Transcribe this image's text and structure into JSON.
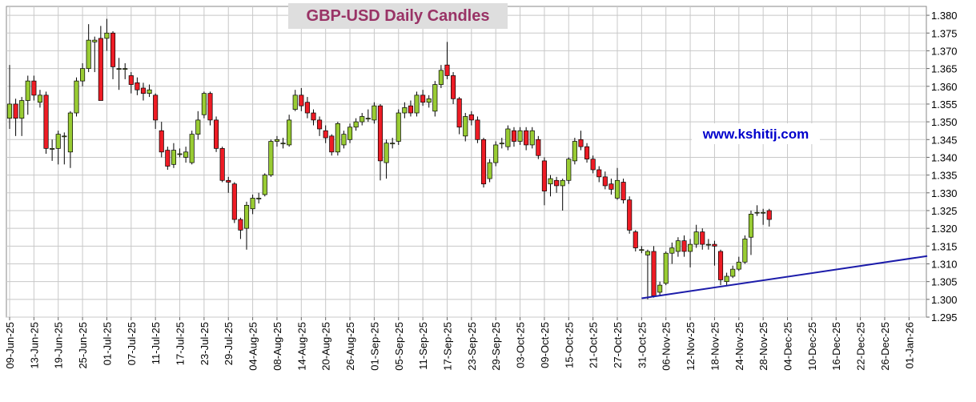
{
  "chart_data": {
    "type": "candlestick",
    "title": "GBP-USD Daily Candles",
    "annotation": "www.kshitij.com",
    "up_color": "#99cc33",
    "down_color": "#ee1c25",
    "grid": true,
    "ylim": [
      1.295,
      1.3825
    ],
    "yticks": [
      1.295,
      {
        "value": 1.3,
        "label": "1.300"
      },
      1.305,
      {
        "value": 1.31,
        "label": "1.310"
      },
      1.315,
      {
        "value": 1.32,
        "label": "1.320"
      },
      1.325,
      {
        "value": 1.33,
        "label": "1.330"
      },
      1.335,
      {
        "value": 1.34,
        "label": "1.340"
      },
      1.345,
      {
        "value": 1.35,
        "label": "1.350"
      },
      1.355,
      {
        "value": 1.36,
        "label": "1.360"
      },
      1.365,
      {
        "value": 1.37,
        "label": "1.370"
      },
      1.375,
      {
        "value": 1.38,
        "label": "1.380"
      }
    ],
    "categories": [
      "09-Jun-25",
      null,
      null,
      null,
      "13-Jun-25",
      null,
      null,
      null,
      "19-Jun-25",
      null,
      null,
      null,
      "25-Jun-25",
      null,
      null,
      null,
      "01-Jul-25",
      null,
      null,
      null,
      "07-Jul-25",
      null,
      null,
      null,
      "11-Jul-25",
      null,
      null,
      null,
      "17-Jul-25",
      null,
      null,
      null,
      "23-Jul-25",
      null,
      null,
      null,
      "29-Jul-25",
      null,
      null,
      null,
      "04-Aug-25",
      null,
      null,
      null,
      "08-Aug-25",
      null,
      null,
      null,
      "14-Aug-25",
      null,
      null,
      null,
      "20-Aug-25",
      null,
      null,
      null,
      "26-Aug-25",
      null,
      null,
      null,
      "01-Sep-25",
      null,
      null,
      null,
      "05-Sep-25",
      null,
      null,
      null,
      "11-Sep-25",
      null,
      null,
      null,
      "17-Sep-25",
      null,
      null,
      null,
      "23-Sep-25",
      null,
      null,
      null,
      "29-Sep-25",
      null,
      null,
      null,
      "03-Oct-25",
      null,
      null,
      null,
      "09-Oct-25",
      null,
      null,
      null,
      "15-Oct-25",
      null,
      null,
      null,
      "21-Oct-25",
      null,
      null,
      null,
      "27-Oct-25",
      null,
      null,
      null,
      "31-Oct-25",
      null,
      null,
      null,
      "06-Nov-25",
      null,
      null,
      null,
      "12-Nov-25",
      null,
      null,
      null,
      "18-Nov-25",
      null,
      null,
      null,
      "24-Nov-25",
      null,
      null,
      null,
      "28-Nov-25",
      null,
      null,
      null,
      "04-Dec-25",
      null,
      null,
      null,
      "10-Dec-25",
      null,
      null,
      null,
      "16-Dec-25",
      null,
      null,
      null,
      "22-Dec-25",
      null,
      null,
      null,
      "26-Dec-25",
      null,
      null,
      null,
      "01-Jan-26"
    ],
    "open": [
      1.351,
      1.355,
      1.351,
      1.356,
      1.3615,
      1.3555,
      1.3575,
      1.3425,
      1.3425,
      1.346,
      1.3415,
      1.3525,
      1.3615,
      1.365,
      1.3725,
      1.3735,
      1.3735,
      1.375,
      1.365,
      1.365,
      1.363,
      1.361,
      1.3595,
      1.358,
      1.3575,
      1.3475,
      1.342,
      1.338,
      1.341,
      1.34,
      1.3385,
      1.3465,
      1.352,
      1.358,
      1.3505,
      1.3425,
      1.3335,
      1.3325,
      1.3225,
      1.32,
      1.3255,
      1.3285,
      1.3295,
      1.335,
      1.3445,
      1.344,
      1.3435,
      1.3535,
      1.3575,
      1.3555,
      1.3525,
      1.3505,
      1.3475,
      1.346,
      1.3415,
      1.3435,
      1.345,
      1.3485,
      1.35,
      1.351,
      1.3505,
      1.3545,
      1.3385,
      1.344,
      1.3445,
      1.3525,
      1.3545,
      1.3525,
      1.3575,
      1.3555,
      1.353,
      1.3605,
      1.366,
      1.363,
      1.3565,
      1.346,
      1.352,
      1.3505,
      1.345,
      1.334,
      1.3385,
      1.344,
      1.343,
      1.3475,
      1.3445,
      1.3475,
      1.3435,
      1.345,
      1.339,
      1.3325,
      1.3335,
      1.332,
      1.3335,
      1.339,
      1.345,
      1.343,
      1.3395,
      1.3365,
      1.3345,
      1.3325,
      1.3285,
      1.333,
      1.328,
      1.319,
      1.314,
      1.3125,
      1.3135,
      1.302,
      1.3045,
      1.313,
      1.3135,
      1.3165,
      1.3135,
      1.3155,
      1.319,
      1.3155,
      1.3155,
      1.3135,
      1.305,
      1.3065,
      1.3085,
      1.3105,
      1.3175,
      1.3245,
      1.3245,
      1.325,
      null,
      null,
      null,
      null,
      null,
      null,
      null,
      null,
      null,
      null,
      null,
      null,
      null,
      null,
      null,
      null,
      null,
      null,
      null,
      null,
      null,
      null,
      null
    ],
    "high": [
      1.366,
      1.3565,
      1.357,
      1.363,
      1.363,
      1.359,
      1.3585,
      1.345,
      1.3475,
      1.347,
      1.353,
      1.3625,
      1.3665,
      1.3775,
      1.374,
      1.377,
      1.379,
      1.3755,
      1.368,
      1.3665,
      1.364,
      1.3625,
      1.361,
      1.3605,
      1.358,
      1.35,
      1.343,
      1.344,
      1.3425,
      1.343,
      1.3475,
      1.353,
      1.3585,
      1.3585,
      1.3515,
      1.343,
      1.3345,
      1.333,
      1.323,
      1.3275,
      1.3295,
      1.33,
      1.3355,
      1.345,
      1.346,
      1.3455,
      1.352,
      1.359,
      1.3595,
      1.357,
      1.3535,
      1.3515,
      1.349,
      1.3465,
      1.35,
      1.3475,
      1.3495,
      1.351,
      1.3525,
      1.3535,
      1.3555,
      1.355,
      1.345,
      1.3455,
      1.3535,
      1.3555,
      1.356,
      1.3585,
      1.359,
      1.3575,
      1.3615,
      1.366,
      1.3725,
      1.364,
      1.357,
      1.3525,
      1.353,
      1.3515,
      1.3455,
      1.3395,
      1.3445,
      1.3455,
      1.349,
      1.3485,
      1.3485,
      1.3485,
      1.3485,
      1.346,
      1.34,
      1.335,
      1.3345,
      1.334,
      1.34,
      1.3455,
      1.3475,
      1.344,
      1.3405,
      1.3375,
      1.336,
      1.334,
      1.337,
      1.334,
      1.329,
      1.3195,
      1.315,
      1.314,
      1.315,
      1.305,
      1.3135,
      1.316,
      1.3175,
      1.318,
      1.317,
      1.321,
      1.32,
      1.317,
      1.3165,
      1.314,
      1.3075,
      1.3095,
      1.312,
      1.318,
      1.325,
      1.3265,
      1.3255,
      1.3255,
      null,
      null,
      null,
      null,
      null,
      null,
      null,
      null,
      null,
      null,
      null,
      null,
      null,
      null,
      null,
      null,
      null,
      null,
      null,
      null,
      null,
      null,
      null
    ],
    "low": [
      1.348,
      1.346,
      1.346,
      1.352,
      1.356,
      1.354,
      1.341,
      1.339,
      1.338,
      1.338,
      1.337,
      1.3515,
      1.36,
      1.364,
      1.364,
      1.356,
      1.37,
      1.362,
      1.359,
      1.362,
      1.358,
      1.3575,
      1.356,
      1.357,
      1.348,
      1.34,
      1.3365,
      1.337,
      1.34,
      1.3385,
      1.338,
      1.345,
      1.351,
      1.349,
      1.3415,
      1.333,
      1.33,
      1.3215,
      1.317,
      1.314,
      1.324,
      1.327,
      1.329,
      1.3345,
      1.343,
      1.3425,
      1.343,
      1.353,
      1.353,
      1.351,
      1.349,
      1.346,
      1.344,
      1.3405,
      1.3405,
      1.3425,
      1.344,
      1.3475,
      1.349,
      1.35,
      1.3495,
      1.3335,
      1.334,
      1.3425,
      1.3435,
      1.351,
      1.3515,
      1.3515,
      1.3545,
      1.354,
      1.3515,
      1.3595,
      1.362,
      1.355,
      1.3465,
      1.3445,
      1.349,
      1.344,
      1.3315,
      1.333,
      1.3375,
      1.3425,
      1.342,
      1.343,
      1.3435,
      1.342,
      1.3425,
      1.3395,
      1.3265,
      1.329,
      1.33,
      1.325,
      1.3325,
      1.338,
      1.342,
      1.3385,
      1.3355,
      1.333,
      1.331,
      1.3295,
      1.328,
      1.327,
      1.3185,
      1.3135,
      1.313,
      1.3,
      1.3005,
      1.301,
      1.304,
      1.31,
      1.312,
      1.312,
      1.309,
      1.3145,
      1.314,
      1.314,
      1.3095,
      1.304,
      1.304,
      1.306,
      1.308,
      1.31,
      1.3125,
      1.3235,
      1.321,
      1.3205,
      null,
      null,
      null,
      null,
      null,
      null,
      null,
      null,
      null,
      null,
      null,
      null,
      null,
      null,
      null,
      null,
      null,
      null,
      null,
      null,
      null,
      null,
      null
    ],
    "close": [
      1.355,
      1.351,
      1.356,
      1.3615,
      1.3575,
      1.3575,
      1.3425,
      1.3425,
      1.3465,
      1.346,
      1.3525,
      1.3615,
      1.365,
      1.373,
      1.373,
      1.356,
      1.375,
      1.3655,
      1.365,
      1.365,
      1.3605,
      1.359,
      1.358,
      1.359,
      1.3505,
      1.3415,
      1.3375,
      1.342,
      1.341,
      1.3415,
      1.3465,
      1.3505,
      1.358,
      1.3505,
      1.3425,
      1.3335,
      1.333,
      1.3225,
      1.3195,
      1.3265,
      1.3285,
      1.3285,
      1.335,
      1.3445,
      1.345,
      1.344,
      1.3505,
      1.3575,
      1.3545,
      1.3525,
      1.3505,
      1.348,
      1.3455,
      1.3415,
      1.3495,
      1.3465,
      1.3485,
      1.35,
      1.3515,
      1.351,
      1.3545,
      1.339,
      1.344,
      1.344,
      1.3525,
      1.354,
      1.3525,
      1.3575,
      1.3555,
      1.3565,
      1.3605,
      1.3645,
      1.363,
      1.3565,
      1.3485,
      1.3515,
      1.3505,
      1.345,
      1.3325,
      1.3385,
      1.3435,
      1.344,
      1.348,
      1.3445,
      1.3475,
      1.3435,
      1.3475,
      1.3405,
      1.3305,
      1.334,
      1.332,
      1.3335,
      1.3395,
      1.3445,
      1.343,
      1.3395,
      1.3365,
      1.3345,
      1.332,
      1.331,
      1.3335,
      1.328,
      1.3195,
      1.3145,
      1.314,
      1.3135,
      1.301,
      1.304,
      1.313,
      1.3145,
      1.3165,
      1.3135,
      1.3155,
      1.319,
      1.3155,
      1.3155,
      1.315,
      1.3055,
      1.3065,
      1.3085,
      1.3105,
      1.317,
      1.324,
      1.3245,
      1.3245,
      1.3225,
      null,
      null,
      null,
      null,
      null,
      null,
      null,
      null,
      null,
      null,
      null,
      null,
      null,
      null,
      null,
      null,
      null,
      null,
      null,
      null,
      null,
      null,
      null
    ],
    "trendline": {
      "color": "#1c1caa",
      "x": [
        104,
        151
      ],
      "values": [
        1.3003,
        1.3122
      ]
    }
  }
}
